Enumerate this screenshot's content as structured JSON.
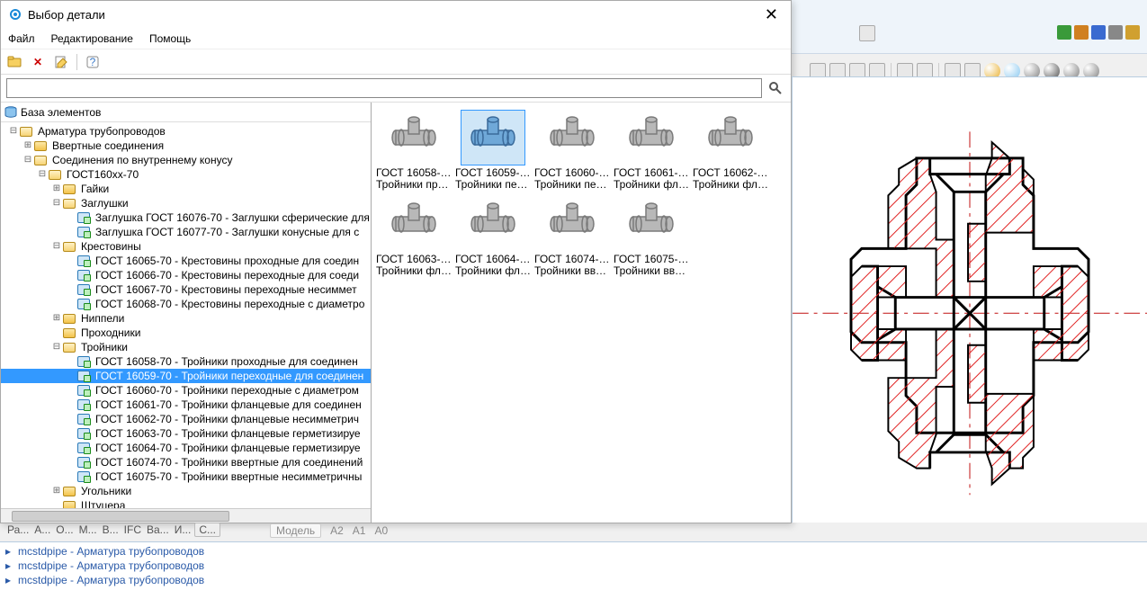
{
  "dialog": {
    "title": "Выбор детали",
    "close_glyph": "✕",
    "menu": {
      "file": "Файл",
      "edit": "Редактирование",
      "help": "Помощь"
    },
    "search": {
      "placeholder": ""
    }
  },
  "tree_header": "База элементов",
  "tree": [
    {
      "d": 0,
      "exp": "-",
      "kind": "folder-open",
      "label": "Арматура трубопроводов"
    },
    {
      "d": 1,
      "exp": "+",
      "kind": "folder",
      "label": "Ввертные соединения"
    },
    {
      "d": 1,
      "exp": "-",
      "kind": "folder-open",
      "label": "Соединения по внутреннему конусу"
    },
    {
      "d": 2,
      "exp": "-",
      "kind": "folder-open",
      "label": "ГОСТ160xx-70"
    },
    {
      "d": 3,
      "exp": "+",
      "kind": "folder",
      "label": "Гайки"
    },
    {
      "d": 3,
      "exp": "-",
      "kind": "folder-open",
      "label": "Заглушки"
    },
    {
      "d": 4,
      "exp": "",
      "kind": "part",
      "label": "Заглушка ГОСТ 16076-70 - Заглушки сферические для"
    },
    {
      "d": 4,
      "exp": "",
      "kind": "part",
      "label": "Заглушка ГОСТ 16077-70 - Заглушки конусные для с"
    },
    {
      "d": 3,
      "exp": "-",
      "kind": "folder-open",
      "label": "Крестовины"
    },
    {
      "d": 4,
      "exp": "",
      "kind": "part",
      "label": "ГОСТ 16065-70 - Крестовины проходные для соедин"
    },
    {
      "d": 4,
      "exp": "",
      "kind": "part",
      "label": "ГОСТ 16066-70 - Крестовины переходные для соеди"
    },
    {
      "d": 4,
      "exp": "",
      "kind": "part",
      "label": "ГОСТ 16067-70 - Крестовины переходные несиммет"
    },
    {
      "d": 4,
      "exp": "",
      "kind": "part",
      "label": "ГОСТ 16068-70 - Крестовины переходные с диаметро"
    },
    {
      "d": 3,
      "exp": "+",
      "kind": "folder",
      "label": "Ниппели"
    },
    {
      "d": 3,
      "exp": "",
      "kind": "folder",
      "label": "Проходники"
    },
    {
      "d": 3,
      "exp": "-",
      "kind": "folder-open",
      "label": "Тройники"
    },
    {
      "d": 4,
      "exp": "",
      "kind": "part",
      "label": "ГОСТ 16058-70 - Тройники проходные для соединен"
    },
    {
      "d": 4,
      "exp": "",
      "kind": "part",
      "label": "ГОСТ 16059-70 - Тройники переходные для соединен",
      "selected": true
    },
    {
      "d": 4,
      "exp": "",
      "kind": "part",
      "label": "ГОСТ 16060-70 - Тройники переходные с диаметром"
    },
    {
      "d": 4,
      "exp": "",
      "kind": "part",
      "label": "ГОСТ 16061-70 - Тройники фланцевые для соединен"
    },
    {
      "d": 4,
      "exp": "",
      "kind": "part",
      "label": "ГОСТ 16062-70 - Тройники фланцевые несимметрич"
    },
    {
      "d": 4,
      "exp": "",
      "kind": "part",
      "label": "ГОСТ 16063-70 - Тройники фланцевые герметизируе"
    },
    {
      "d": 4,
      "exp": "",
      "kind": "part",
      "label": "ГОСТ 16064-70 - Тройники фланцевые герметизируе"
    },
    {
      "d": 4,
      "exp": "",
      "kind": "part",
      "label": "ГОСТ 16074-70 - Тройники ввертные для соединений"
    },
    {
      "d": 4,
      "exp": "",
      "kind": "part",
      "label": "ГОСТ 16075-70 - Тройники ввертные несимметричны"
    },
    {
      "d": 3,
      "exp": "+",
      "kind": "folder",
      "label": "Угольники"
    },
    {
      "d": 3,
      "exp": "",
      "kind": "folder",
      "label": "Штуцера"
    }
  ],
  "thumbs": [
    {
      "l1": "ГОСТ 16058-70 -",
      "l2": "Тройники про...",
      "selected": false
    },
    {
      "l1": "ГОСТ 16059-70 -",
      "l2": "Тройники пер...",
      "selected": true
    },
    {
      "l1": "ГОСТ 16060-70 -",
      "l2": "Тройники пер...",
      "selected": false
    },
    {
      "l1": "ГОСТ 16061-70 -",
      "l2": "Тройники фла...",
      "selected": false
    },
    {
      "l1": "ГОСТ 16062-70 -",
      "l2": "Тройники фла...",
      "selected": false
    },
    {
      "l1": "ГОСТ 16063-70 -",
      "l2": "Тройники фла...",
      "selected": false
    },
    {
      "l1": "ГОСТ 16064-70 -",
      "l2": "Тройники фла...",
      "selected": false
    },
    {
      "l1": "ГОСТ 16074-70 -",
      "l2": "Тройники вве...",
      "selected": false
    },
    {
      "l1": "ГОСТ 16075-70 -",
      "l2": "Тройники вве...",
      "selected": false
    }
  ],
  "status_tabs": [
    "Ра...",
    "А...",
    "О...",
    "М...",
    "В...",
    "IFC",
    "Ва...",
    "И..."
  ],
  "status_tab_boxed": "С...",
  "mid_tabs": {
    "pill": "Модель",
    "rest": [
      "А2",
      "А1",
      "А0"
    ]
  },
  "console": [
    "mcstdpipe - Арматура трубопроводов",
    "mcstdpipe - Арматура трубопроводов",
    "mcstdpipe - Арматура трубопроводов"
  ],
  "colors": {
    "selection": "#3399ff",
    "thumb_sel_bg": "#cfe6f7",
    "console_text": "#2a5aa8",
    "hatch": "#e02020",
    "axis": "#c01010"
  },
  "bg_spheres": [
    "#e8b030",
    "#88c8f0",
    "#808080",
    "#505050",
    "#808080",
    "#808080"
  ]
}
